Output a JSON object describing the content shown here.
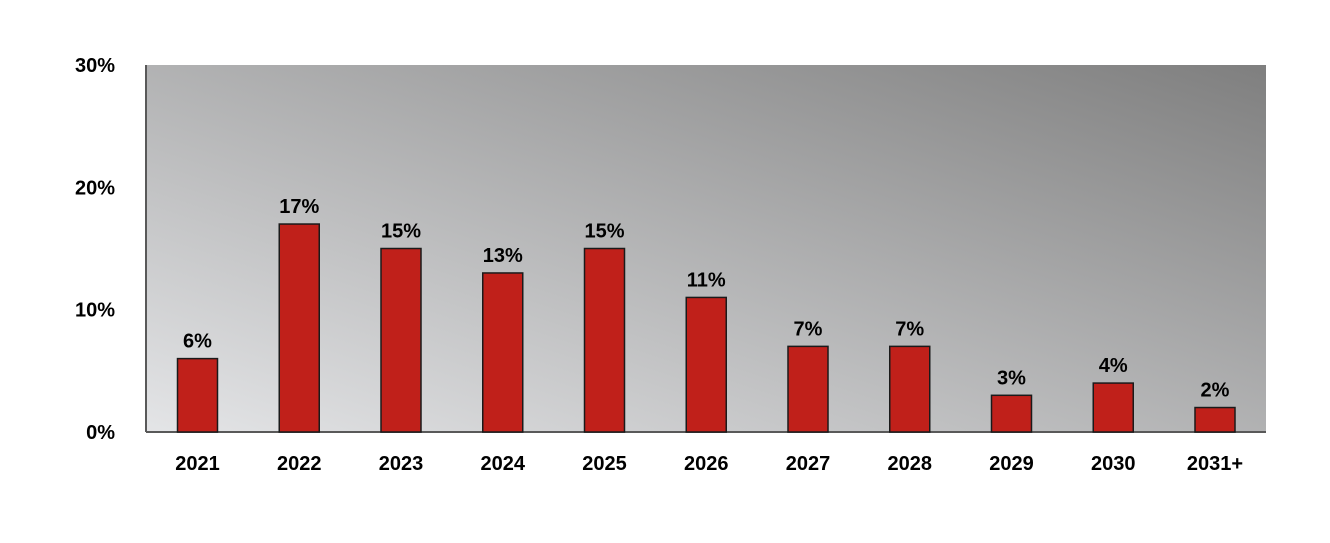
{
  "chart_data": {
    "type": "bar",
    "categories": [
      "2021",
      "2022",
      "2023",
      "2024",
      "2025",
      "2026",
      "2027",
      "2028",
      "2029",
      "2030",
      "2031+"
    ],
    "values": [
      6,
      17,
      15,
      13,
      15,
      11,
      7,
      7,
      3,
      4,
      2
    ],
    "data_labels": [
      "6%",
      "17%",
      "15%",
      "13%",
      "15%",
      "11%",
      "7%",
      "7%",
      "3%",
      "4%",
      "2%"
    ],
    "y_ticks": [
      0,
      10,
      20,
      30
    ],
    "y_tick_labels": [
      "0%",
      "10%",
      "20%",
      "30%"
    ],
    "ylim": [
      0,
      30
    ],
    "title": "",
    "xlabel": "",
    "ylabel": "",
    "grid": false,
    "legend": "none",
    "colors": {
      "bar_fill": "#c0201a",
      "bar_stroke": "#1a1a1a",
      "plot_bg_light": "#e4e5e7",
      "plot_bg_dark": "#7f7f7f",
      "axis": "#595959"
    }
  }
}
